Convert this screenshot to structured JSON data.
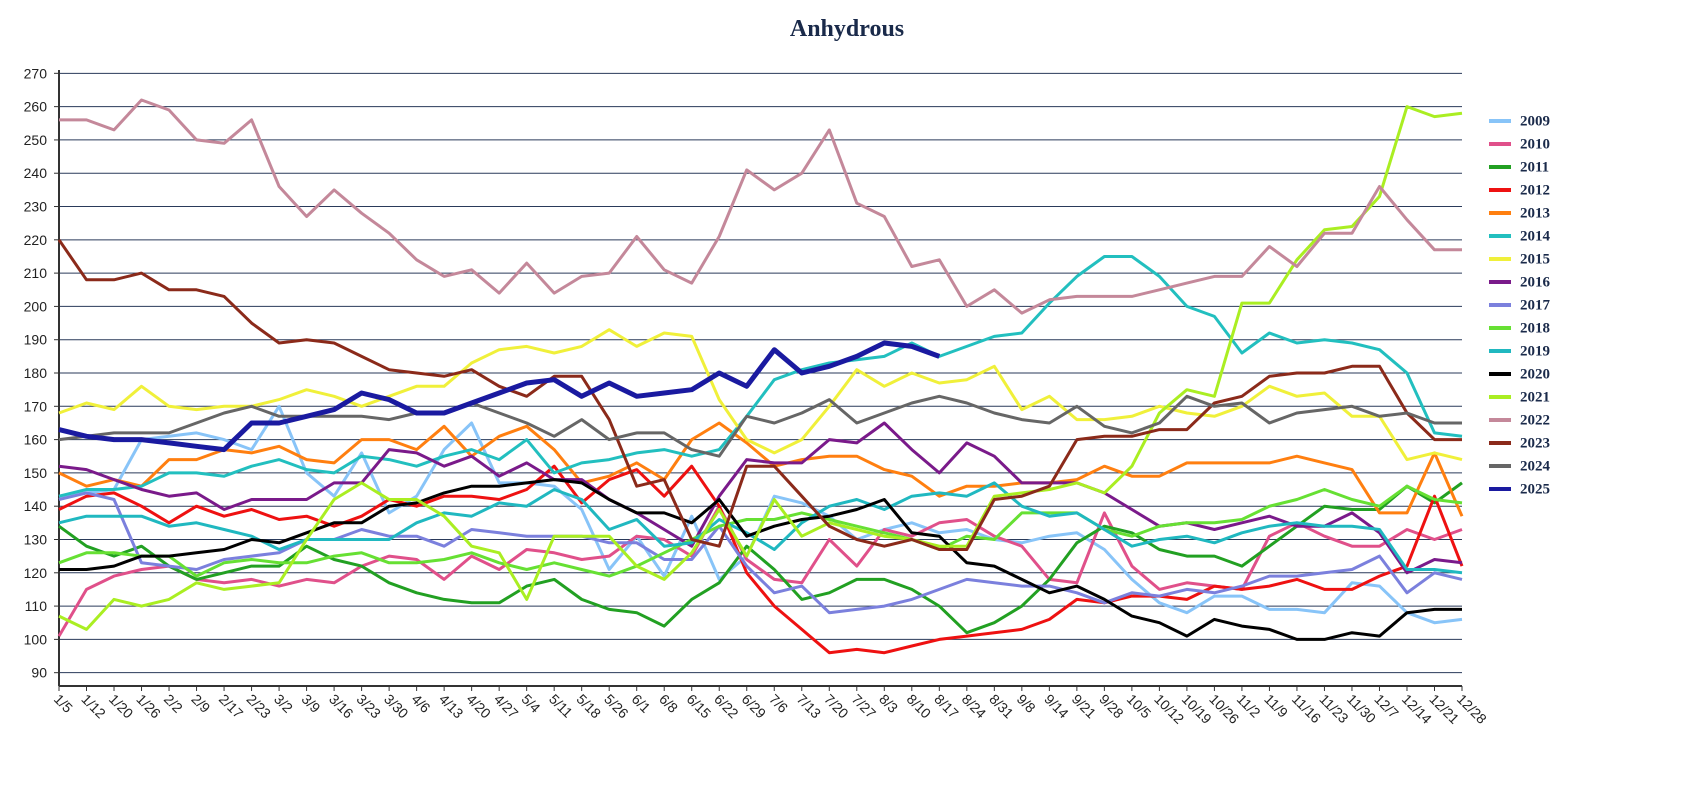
{
  "chart_data": {
    "type": "line",
    "title": "Anhydrous",
    "categories": [
      "1/5",
      "1/12",
      "1/20",
      "1/26",
      "2/2",
      "2/9",
      "2/17",
      "2/23",
      "3/2",
      "3/9",
      "3/16",
      "3/23",
      "3/30",
      "4/6",
      "4/13",
      "4/20",
      "4/27",
      "5/4",
      "5/11",
      "5/18",
      "5/26",
      "6/1",
      "6/8",
      "6/15",
      "6/22",
      "6/29",
      "7/6",
      "7/13",
      "7/20",
      "7/27",
      "8/3",
      "8/10",
      "8/17",
      "8/24",
      "8/31",
      "9/8",
      "9/14",
      "9/21",
      "9/28",
      "10/5",
      "10/12",
      "10/19",
      "10/26",
      "11/2",
      "11/9",
      "11/16",
      "11/23",
      "11/30",
      "12/7",
      "12/14",
      "12/21",
      "12/28"
    ],
    "ylim": [
      86,
      271
    ],
    "yticks": [
      90,
      100,
      110,
      120,
      130,
      140,
      150,
      160,
      170,
      180,
      190,
      200,
      210,
      220,
      230,
      240,
      250,
      260,
      270
    ],
    "grid": true,
    "series": [
      {
        "name": "2009",
        "color": "#88c4f8",
        "values": [
          143,
          144,
          145,
          160,
          161,
          162,
          160,
          157,
          170,
          150,
          143,
          156,
          138,
          143,
          157,
          165,
          147,
          147,
          146,
          139,
          121,
          131,
          119,
          137,
          118,
          125,
          143,
          141,
          137,
          130,
          133,
          135,
          132,
          133,
          130,
          129,
          131,
          132,
          127,
          118,
          111,
          108,
          113,
          113,
          109,
          109,
          108,
          117,
          116,
          108,
          105,
          106
        ]
      },
      {
        "name": "2010",
        "color": "#e0508a",
        "values": [
          101,
          115,
          119,
          121,
          122,
          118,
          117,
          118,
          116,
          118,
          117,
          122,
          125,
          124,
          118,
          125,
          121,
          127,
          126,
          124,
          125,
          131,
          130,
          125,
          140,
          124,
          118,
          117,
          130,
          122,
          133,
          131,
          135,
          136,
          131,
          128,
          118,
          117,
          138,
          122,
          115,
          117,
          116,
          115,
          131,
          135,
          131,
          128,
          128,
          133,
          130,
          133
        ]
      },
      {
        "name": "2011",
        "color": "#22a022",
        "values": [
          134,
          128,
          125,
          128,
          122,
          118,
          120,
          122,
          122,
          128,
          124,
          122,
          117,
          114,
          112,
          111,
          111,
          116,
          118,
          112,
          109,
          108,
          104,
          112,
          117,
          128,
          121,
          112,
          114,
          118,
          118,
          115,
          110,
          102,
          105,
          110,
          118,
          129,
          134,
          132,
          127,
          125,
          125,
          122,
          128,
          134,
          140,
          139,
          139,
          146,
          141,
          147
        ]
      },
      {
        "name": "2012",
        "color": "#ee1111",
        "values": [
          139,
          143,
          144,
          140,
          135,
          140,
          137,
          139,
          136,
          137,
          134,
          137,
          142,
          140,
          143,
          143,
          142,
          145,
          152,
          141,
          148,
          151,
          143,
          152,
          140,
          120,
          110,
          103,
          96,
          97,
          96,
          98,
          100,
          101,
          102,
          103,
          106,
          112,
          111,
          113,
          113,
          112,
          116,
          115,
          116,
          118,
          115,
          115,
          119,
          122,
          143,
          122
        ]
      },
      {
        "name": "2013",
        "color": "#ff7f10",
        "values": [
          150,
          146,
          148,
          146,
          154,
          154,
          157,
          156,
          158,
          154,
          153,
          160,
          160,
          157,
          164,
          155,
          161,
          164,
          157,
          147,
          149,
          153,
          148,
          160,
          165,
          159,
          152,
          154,
          155,
          155,
          151,
          149,
          143,
          146,
          146,
          147,
          147,
          148,
          152,
          149,
          149,
          153,
          153,
          153,
          153,
          155,
          153,
          151,
          138,
          138,
          156,
          137
        ]
      },
      {
        "name": "2014",
        "color": "#22bfbf",
        "values": [
          143,
          145,
          145,
          146,
          150,
          150,
          149,
          152,
          154,
          151,
          150,
          155,
          154,
          152,
          155,
          157,
          154,
          160,
          150,
          153,
          154,
          156,
          157,
          155,
          157,
          167,
          178,
          181,
          183,
          184,
          185,
          189,
          185,
          188,
          191,
          192,
          201,
          209,
          215,
          215,
          209,
          200,
          197,
          186,
          192,
          189,
          190,
          189,
          187,
          180,
          162,
          161
        ]
      },
      {
        "name": "2015",
        "color": "#f0f03a",
        "values": [
          168,
          171,
          169,
          176,
          170,
          169,
          170,
          170,
          172,
          175,
          173,
          170,
          173,
          176,
          176,
          183,
          187,
          188,
          186,
          188,
          193,
          188,
          192,
          191,
          172,
          160,
          156,
          160,
          170,
          181,
          176,
          180,
          177,
          178,
          182,
          169,
          173,
          166,
          166,
          167,
          170,
          168,
          167,
          170,
          176,
          173,
          174,
          167,
          167,
          154,
          156,
          154
        ]
      },
      {
        "name": "2016",
        "color": "#7a1a8a",
        "values": [
          152,
          151,
          148,
          145,
          143,
          144,
          139,
          142,
          142,
          142,
          147,
          147,
          157,
          156,
          152,
          155,
          149,
          153,
          148,
          148,
          142,
          138,
          133,
          128,
          143,
          154,
          153,
          153,
          160,
          159,
          165,
          157,
          150,
          159,
          155,
          147,
          147,
          147,
          144,
          139,
          134,
          135,
          133,
          135,
          137,
          134,
          134,
          138,
          132,
          120,
          124,
          123
        ]
      },
      {
        "name": "2017",
        "color": "#7b80dd",
        "values": [
          142,
          144,
          142,
          123,
          122,
          121,
          124,
          125,
          126,
          130,
          130,
          133,
          131,
          131,
          128,
          133,
          132,
          131,
          131,
          131,
          129,
          129,
          124,
          124,
          134,
          122,
          114,
          116,
          108,
          109,
          110,
          112,
          115,
          118,
          117,
          116,
          116,
          114,
          111,
          114,
          113,
          115,
          114,
          116,
          119,
          119,
          120,
          121,
          125,
          114,
          120,
          118
        ]
      },
      {
        "name": "2018",
        "color": "#66e033",
        "values": [
          123,
          126,
          126,
          125,
          125,
          119,
          123,
          124,
          123,
          123,
          125,
          126,
          123,
          123,
          124,
          126,
          123,
          121,
          123,
          121,
          119,
          122,
          126,
          130,
          134,
          136,
          136,
          138,
          136,
          134,
          132,
          130,
          127,
          131,
          130,
          138,
          138,
          138,
          133,
          131,
          134,
          135,
          135,
          136,
          140,
          142,
          145,
          142,
          140,
          146,
          142,
          141
        ]
      },
      {
        "name": "2019",
        "color": "#20b8c0",
        "values": [
          135,
          137,
          137,
          137,
          134,
          135,
          133,
          131,
          127,
          130,
          130,
          130,
          130,
          135,
          138,
          137,
          141,
          140,
          145,
          142,
          133,
          136,
          128,
          129,
          136,
          132,
          127,
          135,
          140,
          142,
          139,
          143,
          144,
          143,
          147,
          140,
          137,
          138,
          133,
          128,
          130,
          131,
          129,
          132,
          134,
          135,
          134,
          134,
          133,
          121,
          121,
          120
        ]
      },
      {
        "name": "2020",
        "color": "#000000",
        "values": [
          121,
          121,
          122,
          125,
          125,
          126,
          127,
          130,
          129,
          132,
          135,
          135,
          140,
          141,
          144,
          146,
          146,
          147,
          148,
          147,
          142,
          138,
          138,
          135,
          142,
          131,
          134,
          136,
          137,
          139,
          142,
          132,
          131,
          123,
          122,
          118,
          114,
          116,
          112,
          107,
          105,
          101,
          106,
          104,
          103,
          100,
          100,
          102,
          101,
          108,
          109,
          109
        ]
      },
      {
        "name": "2021",
        "color": "#aaee22",
        "values": [
          107,
          103,
          112,
          110,
          112,
          117,
          115,
          116,
          117,
          130,
          142,
          147,
          142,
          142,
          137,
          128,
          126,
          112,
          131,
          131,
          131,
          122,
          118,
          126,
          139,
          125,
          142,
          131,
          135,
          133,
          131,
          130,
          128,
          128,
          143,
          144,
          145,
          147,
          144,
          152,
          168,
          175,
          173,
          201,
          201,
          214,
          223,
          224,
          233,
          260,
          257,
          258
        ]
      },
      {
        "name": "2022",
        "color": "#c4889a",
        "values": [
          256,
          256,
          253,
          262,
          259,
          250,
          249,
          256,
          236,
          227,
          235,
          228,
          222,
          214,
          209,
          211,
          204,
          213,
          204,
          209,
          210,
          221,
          211,
          207,
          221,
          241,
          235,
          240,
          253,
          231,
          227,
          212,
          214,
          200,
          205,
          198,
          202,
          203,
          203,
          203,
          205,
          207,
          209,
          209,
          218,
          212,
          222,
          222,
          236,
          226,
          217,
          217
        ]
      },
      {
        "name": "2023",
        "color": "#8b2a1a",
        "values": [
          220,
          208,
          208,
          210,
          205,
          205,
          203,
          195,
          189,
          190,
          189,
          185,
          181,
          180,
          179,
          181,
          176,
          173,
          179,
          179,
          166,
          146,
          148,
          130,
          128,
          152,
          152,
          143,
          134,
          130,
          128,
          130,
          127,
          127,
          142,
          143,
          146,
          160,
          161,
          161,
          163,
          163,
          171,
          173,
          179,
          180,
          180,
          182,
          182,
          168,
          160,
          160
        ]
      },
      {
        "name": "2024",
        "color": "#666666",
        "values": [
          160,
          161,
          162,
          162,
          162,
          165,
          168,
          170,
          167,
          167,
          167,
          167,
          166,
          168,
          168,
          171,
          168,
          165,
          161,
          166,
          160,
          162,
          162,
          157,
          155,
          167,
          165,
          168,
          172,
          165,
          168,
          171,
          173,
          171,
          168,
          166,
          165,
          170,
          164,
          162,
          165,
          173,
          170,
          171,
          165,
          168,
          169,
          170,
          167,
          168,
          165,
          165
        ]
      },
      {
        "name": "2025",
        "color": "#1a1aa0",
        "values": [
          163,
          161,
          160,
          160,
          159,
          158,
          157,
          165,
          165,
          167,
          169,
          174,
          172,
          168,
          168,
          171,
          174,
          177,
          178,
          173,
          177,
          173,
          174,
          175,
          180,
          176,
          187,
          180,
          182,
          185,
          189,
          188,
          185,
          null,
          null,
          null,
          null,
          null,
          null,
          null,
          null,
          null,
          null,
          null,
          null,
          null,
          null,
          null,
          null,
          null,
          null,
          null
        ]
      }
    ]
  }
}
